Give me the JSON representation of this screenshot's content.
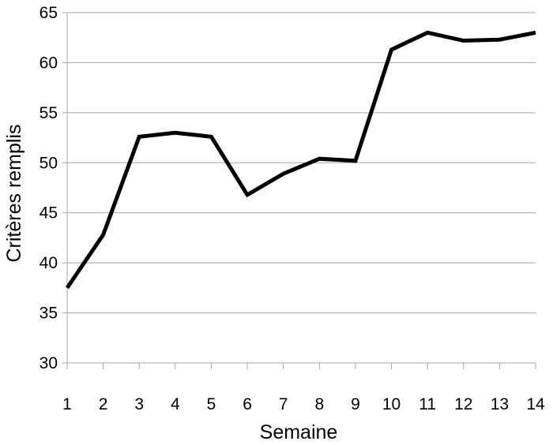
{
  "chart_data": {
    "type": "line",
    "title": "",
    "xlabel": "Semaine",
    "ylabel": "Critères remplis",
    "x": [
      1,
      2,
      3,
      4,
      5,
      6,
      7,
      8,
      9,
      10,
      11,
      12,
      13,
      14
    ],
    "x_tick_labels": [
      "1",
      "2",
      "3",
      "4",
      "5",
      "6",
      "7",
      "8",
      "9",
      "10",
      "11",
      "12",
      "13",
      "14"
    ],
    "y_ticks": [
      30,
      35,
      40,
      45,
      50,
      55,
      60,
      65
    ],
    "y_tick_labels": [
      "30",
      "35",
      "40",
      "45",
      "50",
      "55",
      "60",
      "65"
    ],
    "ylim": [
      30,
      65
    ],
    "grid": "horizontal",
    "legend": "none",
    "series": [
      {
        "values": [
          37.5,
          42.8,
          52.6,
          53.0,
          52.6,
          46.8,
          48.9,
          50.4,
          50.2,
          61.3,
          63.0,
          62.2,
          62.3,
          63.0
        ],
        "color": "#000000"
      }
    ]
  }
}
